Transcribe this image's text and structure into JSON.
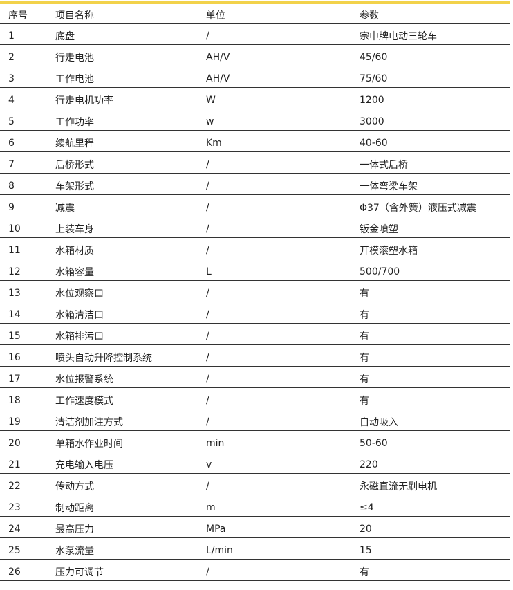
{
  "accent_color": "#f2d24a",
  "headers": [
    "序号",
    "项目名称",
    "单位",
    "参数"
  ],
  "rows": [
    [
      "1",
      "底盘",
      "/",
      "宗申牌电动三轮车"
    ],
    [
      "2",
      "行走电池",
      "AH/V",
      "45/60"
    ],
    [
      "3",
      "工作电池",
      "AH/V",
      "75/60"
    ],
    [
      "4",
      "行走电机功率",
      "W",
      "1200"
    ],
    [
      "5",
      "工作功率",
      "w",
      "3000"
    ],
    [
      "6",
      "续航里程",
      "Km",
      "40-60"
    ],
    [
      "7",
      "后桥形式",
      "/",
      "一体式后桥"
    ],
    [
      "8",
      "车架形式",
      "/",
      "一体弯梁车架"
    ],
    [
      "9",
      "减震",
      "/",
      "Φ37（含外簧）液压式减震"
    ],
    [
      "10",
      "上装车身",
      "/",
      "钣金喷塑"
    ],
    [
      "11",
      "水箱材质",
      "/",
      "开模滚塑水箱"
    ],
    [
      "12",
      "水箱容量",
      "L",
      "500/700"
    ],
    [
      "13",
      "水位观察口",
      "/",
      "有"
    ],
    [
      "14",
      "水箱清洁口",
      "/",
      "有"
    ],
    [
      "15",
      "水箱排污口",
      "/",
      "有"
    ],
    [
      "16",
      "喷头自动升降控制系统",
      "/",
      "有"
    ],
    [
      "17",
      "水位报警系统",
      "/",
      "有"
    ],
    [
      "18",
      "工作速度模式",
      "/",
      "有"
    ],
    [
      "19",
      "清洁剂加注方式",
      "/",
      "自动吸入"
    ],
    [
      "20",
      "单箱水作业时间",
      "min",
      "50-60"
    ],
    [
      "21",
      "充电输入电压",
      "v",
      "220"
    ],
    [
      "22",
      "传动方式",
      "/",
      "永磁直流无刷电机"
    ],
    [
      "23",
      "制动距离",
      "m",
      "≤4"
    ],
    [
      "24",
      "最高压力",
      "MPa",
      "20"
    ],
    [
      "25",
      "水泵流量",
      "L/min",
      "15"
    ],
    [
      "26",
      "压力可调节",
      "/",
      "有"
    ]
  ]
}
